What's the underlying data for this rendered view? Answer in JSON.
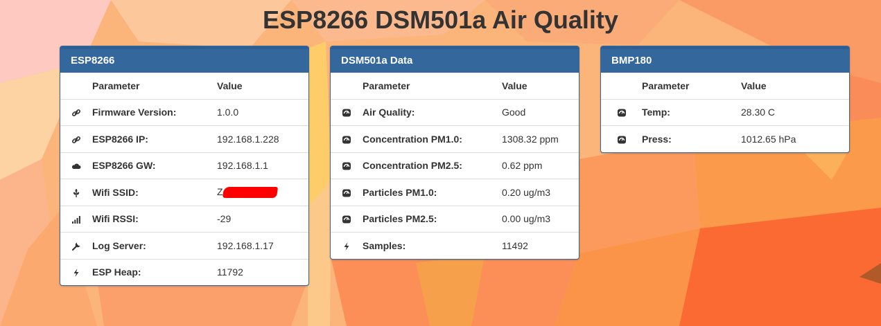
{
  "title": "ESP8266 DSM501a Air Quality",
  "colors": {
    "panel_header": "#34689c",
    "background": "#fbb47a",
    "redaction": "#ff0000"
  },
  "esp": {
    "heading": "ESP8266",
    "col_param": "Parameter",
    "col_value": "Value",
    "rows": [
      {
        "icon": "link-icon",
        "label": "Firmware Version:",
        "value": "1.0.0"
      },
      {
        "icon": "link-icon",
        "label": "ESP8266 IP:",
        "value": "192.168.1.228"
      },
      {
        "icon": "cloud-icon",
        "label": "ESP8266 GW:",
        "value": "192.168.1.1"
      },
      {
        "icon": "grain-icon",
        "label": "Wifi SSID:",
        "value": "Z"
      },
      {
        "icon": "signal-icon",
        "label": "Wifi RSSI:",
        "value": "-29"
      },
      {
        "icon": "wrench-icon",
        "label": "Log Server:",
        "value": "192.168.1.17"
      },
      {
        "icon": "flash-icon",
        "label": "ESP Heap:",
        "value": "11792"
      }
    ]
  },
  "dsm": {
    "heading": "DSM501a Data",
    "col_param": "Parameter",
    "col_value": "Value",
    "rows": [
      {
        "icon": "dashboard-icon",
        "label": "Air Quality:",
        "value": "Good"
      },
      {
        "icon": "dashboard-icon",
        "label": "Concentration PM1.0:",
        "value": "1308.32 ppm"
      },
      {
        "icon": "dashboard-icon",
        "label": "Concentration PM2.5:",
        "value": "0.62 ppm"
      },
      {
        "icon": "dashboard-icon",
        "label": "Particles PM1.0:",
        "value": "0.20 ug/m3"
      },
      {
        "icon": "dashboard-icon",
        "label": "Particles PM2.5:",
        "value": "0.00 ug/m3"
      },
      {
        "icon": "flash-icon",
        "label": "Samples:",
        "value": "11492"
      }
    ]
  },
  "bmp": {
    "heading": "BMP180",
    "col_param": "Parameter",
    "col_value": "Value",
    "rows": [
      {
        "icon": "dashboard-icon",
        "label": "Temp:",
        "value": "28.30 C"
      },
      {
        "icon": "dashboard-icon",
        "label": "Press:",
        "value": "1012.65 hPa"
      }
    ]
  }
}
